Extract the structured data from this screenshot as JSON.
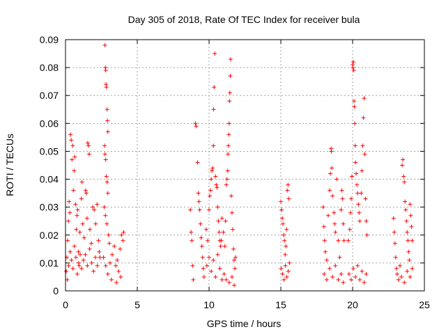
{
  "chart_data": {
    "type": "scatter",
    "title": "Day 305 of 2018, Rate Of TEC Index for receiver bula",
    "xlabel": "GPS time / hours",
    "ylabel": "ROTI / TECUs",
    "xlim": [
      0,
      25
    ],
    "ylim": [
      0,
      0.09
    ],
    "xticks": [
      0,
      5,
      10,
      15,
      20,
      25
    ],
    "yticks": [
      0,
      0.01,
      0.02,
      0.03,
      0.04,
      0.05,
      0.06,
      0.07,
      0.08,
      0.09
    ],
    "ytick_labels": [
      "0",
      "0.01",
      "0.02",
      "0.03",
      "0.04",
      "0.05",
      "0.06",
      "0.07",
      "0.08",
      "0.09"
    ],
    "grid": true,
    "marker": "+",
    "color": "#ff0000",
    "series": [
      {
        "points": [
          [
            0.05,
            0.007
          ],
          [
            0.1,
            0.012
          ],
          [
            0.15,
            0.018
          ],
          [
            0.2,
            0.025
          ],
          [
            0.25,
            0.032
          ],
          [
            0.3,
            0.028
          ],
          [
            0.35,
            0.056
          ],
          [
            0.4,
            0.054
          ],
          [
            0.45,
            0.047
          ],
          [
            0.5,
            0.052
          ],
          [
            0.55,
            0.036
          ],
          [
            0.6,
            0.043
          ],
          [
            0.65,
            0.048
          ],
          [
            0.7,
            0.031
          ],
          [
            0.75,
            0.022
          ],
          [
            0.8,
            0.027
          ],
          [
            0.85,
            0.029
          ],
          [
            0.9,
            0.014
          ],
          [
            0.95,
            0.009
          ],
          [
            1.0,
            0.021
          ],
          [
            0.12,
            0.004
          ],
          [
            0.22,
            0.009
          ],
          [
            0.32,
            0.014
          ],
          [
            0.42,
            0.011
          ],
          [
            0.52,
            0.008
          ],
          [
            0.62,
            0.016
          ],
          [
            0.72,
            0.012
          ],
          [
            0.82,
            0.006
          ],
          [
            0.92,
            0.01
          ],
          [
            1.02,
            0.013
          ],
          [
            1.1,
            0.033
          ],
          [
            1.15,
            0.039
          ],
          [
            1.2,
            0.024
          ],
          [
            1.3,
            0.019
          ],
          [
            1.4,
            0.036
          ],
          [
            1.45,
            0.035
          ],
          [
            1.5,
            0.026
          ],
          [
            1.55,
            0.053
          ],
          [
            1.6,
            0.052
          ],
          [
            1.65,
            0.049
          ],
          [
            1.7,
            0.022
          ],
          [
            1.8,
            0.017
          ],
          [
            1.9,
            0.03
          ],
          [
            2.0,
            0.029
          ],
          [
            2.1,
            0.024
          ],
          [
            2.2,
            0.031
          ],
          [
            2.3,
            0.018
          ],
          [
            2.4,
            0.012
          ],
          [
            1.12,
            0.008
          ],
          [
            1.25,
            0.011
          ],
          [
            1.38,
            0.013
          ],
          [
            1.52,
            0.009
          ],
          [
            1.68,
            0.015
          ],
          [
            1.82,
            0.01
          ],
          [
            1.95,
            0.007
          ],
          [
            2.08,
            0.012
          ],
          [
            2.22,
            0.009
          ],
          [
            2.35,
            0.014
          ],
          [
            2.75,
            0.088
          ],
          [
            2.78,
            0.08
          ],
          [
            2.8,
            0.079
          ],
          [
            2.82,
            0.074
          ],
          [
            2.85,
            0.073
          ],
          [
            2.9,
            0.065
          ],
          [
            2.92,
            0.061
          ],
          [
            2.95,
            0.057
          ],
          [
            2.72,
            0.052
          ],
          [
            2.75,
            0.049
          ],
          [
            2.8,
            0.047
          ],
          [
            2.85,
            0.041
          ],
          [
            2.9,
            0.039
          ],
          [
            2.95,
            0.035
          ],
          [
            2.7,
            0.03
          ],
          [
            2.78,
            0.027
          ],
          [
            2.88,
            0.024
          ],
          [
            3.0,
            0.02
          ],
          [
            3.05,
            0.017
          ],
          [
            2.65,
            0.012
          ],
          [
            2.8,
            0.009
          ],
          [
            2.95,
            0.006
          ],
          [
            3.1,
            0.01
          ],
          [
            3.25,
            0.013
          ],
          [
            3.4,
            0.016
          ],
          [
            3.5,
            0.009
          ],
          [
            3.6,
            0.011
          ],
          [
            3.7,
            0.007
          ],
          [
            3.8,
            0.015
          ],
          [
            3.9,
            0.02
          ],
          [
            4.0,
            0.018
          ],
          [
            4.05,
            0.021
          ],
          [
            3.2,
            0.004
          ],
          [
            3.55,
            0.003
          ],
          [
            3.85,
            0.005
          ],
          [
            8.7,
            0.029
          ],
          [
            8.75,
            0.021
          ],
          [
            8.8,
            0.018
          ],
          [
            8.85,
            0.009
          ],
          [
            8.9,
            0.004
          ],
          [
            9.05,
            0.06
          ],
          [
            9.1,
            0.059
          ],
          [
            9.2,
            0.046
          ],
          [
            9.25,
            0.035
          ],
          [
            9.3,
            0.032
          ],
          [
            9.35,
            0.029
          ],
          [
            9.4,
            0.024
          ],
          [
            9.45,
            0.019
          ],
          [
            9.5,
            0.016
          ],
          [
            9.55,
            0.012
          ],
          [
            9.6,
            0.008
          ],
          [
            9.65,
            0.005
          ],
          [
            9.8,
            0.022
          ],
          [
            9.9,
            0.018
          ],
          [
            10.0,
            0.029
          ],
          [
            10.05,
            0.034
          ],
          [
            10.1,
            0.036
          ],
          [
            10.15,
            0.04
          ],
          [
            10.2,
            0.043
          ],
          [
            10.25,
            0.044
          ],
          [
            10.3,
            0.052
          ],
          [
            10.32,
            0.065
          ],
          [
            10.35,
            0.073
          ],
          [
            10.4,
            0.085
          ],
          [
            10.45,
            0.041
          ],
          [
            10.5,
            0.038
          ],
          [
            10.55,
            0.037
          ],
          [
            10.6,
            0.03
          ],
          [
            10.65,
            0.025
          ],
          [
            10.7,
            0.021
          ],
          [
            10.75,
            0.018
          ],
          [
            10.8,
            0.016
          ],
          [
            10.85,
            0.018
          ],
          [
            10.9,
            0.026
          ],
          [
            9.85,
            0.009
          ],
          [
            10.0,
            0.012
          ],
          [
            10.15,
            0.007
          ],
          [
            10.3,
            0.011
          ],
          [
            10.45,
            0.005
          ],
          [
            10.6,
            0.013
          ],
          [
            10.75,
            0.008
          ],
          [
            10.9,
            0.004
          ],
          [
            11.0,
            0.021
          ],
          [
            11.1,
            0.016
          ],
          [
            11.15,
            0.025
          ],
          [
            11.2,
            0.038
          ],
          [
            11.25,
            0.04
          ],
          [
            11.3,
            0.043
          ],
          [
            11.32,
            0.049
          ],
          [
            11.35,
            0.052
          ],
          [
            11.38,
            0.056
          ],
          [
            11.4,
            0.06
          ],
          [
            11.42,
            0.068
          ],
          [
            11.45,
            0.071
          ],
          [
            11.48,
            0.077
          ],
          [
            11.5,
            0.083
          ],
          [
            11.55,
            0.034
          ],
          [
            11.6,
            0.028
          ],
          [
            11.65,
            0.022
          ],
          [
            11.7,
            0.015
          ],
          [
            11.75,
            0.011
          ],
          [
            11.8,
            0.008
          ],
          [
            11.85,
            0.012
          ],
          [
            11.05,
            0.006
          ],
          [
            11.2,
            0.004
          ],
          [
            11.4,
            0.003
          ],
          [
            11.6,
            0.005
          ],
          [
            11.75,
            0.002
          ],
          [
            15.0,
            0.032
          ],
          [
            15.05,
            0.029
          ],
          [
            15.1,
            0.026
          ],
          [
            15.15,
            0.024
          ],
          [
            15.2,
            0.02
          ],
          [
            15.25,
            0.018
          ],
          [
            15.3,
            0.013
          ],
          [
            15.35,
            0.016
          ],
          [
            15.4,
            0.022
          ],
          [
            15.45,
            0.036
          ],
          [
            15.5,
            0.038
          ],
          [
            15.55,
            0.033
          ],
          [
            15.6,
            0.01
          ],
          [
            15.02,
            0.008
          ],
          [
            15.12,
            0.006
          ],
          [
            15.22,
            0.004
          ],
          [
            15.32,
            0.009
          ],
          [
            15.42,
            0.005
          ],
          [
            15.52,
            0.007
          ],
          [
            17.95,
            0.03
          ],
          [
            18.0,
            0.023
          ],
          [
            18.05,
            0.018
          ],
          [
            18.1,
            0.014
          ],
          [
            18.2,
            0.011
          ],
          [
            18.3,
            0.027
          ],
          [
            18.4,
            0.036
          ],
          [
            18.45,
            0.042
          ],
          [
            18.5,
            0.051
          ],
          [
            18.52,
            0.05
          ],
          [
            18.55,
            0.044
          ],
          [
            18.6,
            0.034
          ],
          [
            18.7,
            0.028
          ],
          [
            18.75,
            0.024
          ],
          [
            18.8,
            0.021
          ],
          [
            18.9,
            0.04
          ],
          [
            19.0,
            0.018
          ],
          [
            19.1,
            0.012
          ],
          [
            19.2,
            0.029
          ],
          [
            19.25,
            0.036
          ],
          [
            19.3,
            0.033
          ],
          [
            19.35,
            0.024
          ],
          [
            19.4,
            0.018
          ],
          [
            18.02,
            0.006
          ],
          [
            18.2,
            0.004
          ],
          [
            18.4,
            0.008
          ],
          [
            18.6,
            0.005
          ],
          [
            18.8,
            0.009
          ],
          [
            19.0,
            0.004
          ],
          [
            19.2,
            0.006
          ],
          [
            19.35,
            0.003
          ],
          [
            19.7,
            0.018
          ],
          [
            19.8,
            0.022
          ],
          [
            19.85,
            0.028
          ],
          [
            19.9,
            0.033
          ],
          [
            19.95,
            0.041
          ],
          [
            20.0,
            0.081
          ],
          [
            20.02,
            0.08
          ],
          [
            20.05,
            0.082
          ],
          [
            20.08,
            0.079
          ],
          [
            20.1,
            0.068
          ],
          [
            20.12,
            0.066
          ],
          [
            20.15,
            0.06
          ],
          [
            20.18,
            0.052
          ],
          [
            20.2,
            0.046
          ],
          [
            20.25,
            0.042
          ],
          [
            20.3,
            0.038
          ],
          [
            20.35,
            0.035
          ],
          [
            20.4,
            0.031
          ],
          [
            20.45,
            0.028
          ],
          [
            20.5,
            0.025
          ],
          [
            20.6,
            0.035
          ],
          [
            20.65,
            0.043
          ],
          [
            20.7,
            0.052
          ],
          [
            20.75,
            0.062
          ],
          [
            20.8,
            0.069
          ],
          [
            20.85,
            0.049
          ],
          [
            20.9,
            0.033
          ],
          [
            20.95,
            0.025
          ],
          [
            21.0,
            0.02
          ],
          [
            19.75,
            0.006
          ],
          [
            19.9,
            0.004
          ],
          [
            20.05,
            0.008
          ],
          [
            20.2,
            0.005
          ],
          [
            20.35,
            0.009
          ],
          [
            20.5,
            0.004
          ],
          [
            20.65,
            0.007
          ],
          [
            20.8,
            0.003
          ],
          [
            20.95,
            0.006
          ],
          [
            22.85,
            0.026
          ],
          [
            22.9,
            0.021
          ],
          [
            22.95,
            0.017
          ],
          [
            23.0,
            0.012
          ],
          [
            23.05,
            0.008
          ],
          [
            23.1,
            0.006
          ],
          [
            23.2,
            0.004
          ],
          [
            23.3,
            0.009
          ],
          [
            23.45,
            0.045
          ],
          [
            23.5,
            0.047
          ],
          [
            23.55,
            0.041
          ],
          [
            23.6,
            0.039
          ],
          [
            23.65,
            0.032
          ],
          [
            23.7,
            0.029
          ],
          [
            23.75,
            0.025
          ],
          [
            23.8,
            0.021
          ],
          [
            23.85,
            0.018
          ],
          [
            23.9,
            0.014
          ],
          [
            23.95,
            0.011
          ],
          [
            24.0,
            0.031
          ],
          [
            24.05,
            0.027
          ],
          [
            24.1,
            0.023
          ],
          [
            24.15,
            0.018
          ],
          [
            23.4,
            0.005
          ],
          [
            23.6,
            0.003
          ],
          [
            23.8,
            0.007
          ],
          [
            24.0,
            0.005
          ],
          [
            24.15,
            0.008
          ]
        ]
      }
    ]
  }
}
